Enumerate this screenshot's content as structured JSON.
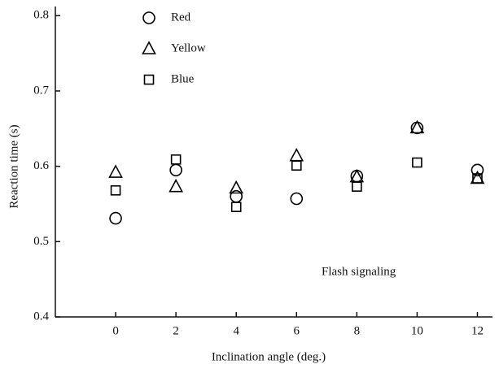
{
  "chart_data": {
    "type": "scatter",
    "xlabel": "Inclination angle (deg.)",
    "ylabel": "Reaction time (s)",
    "annotation": "Flash signaling",
    "x": [
      0,
      2,
      4,
      6,
      8,
      10,
      12
    ],
    "series": [
      {
        "name": "Red",
        "marker": "circle",
        "color": "#000000",
        "values": [
          0.531,
          0.595,
          0.56,
          0.557,
          0.587,
          0.651,
          0.595
        ]
      },
      {
        "name": "Yellow",
        "marker": "triangle",
        "color": "#000000",
        "values": [
          0.592,
          0.573,
          0.571,
          0.614,
          0.586,
          0.651,
          0.584
        ]
      },
      {
        "name": "Blue",
        "marker": "square",
        "color": "#000000",
        "values": [
          0.568,
          0.609,
          0.546,
          0.601,
          0.573,
          0.605,
          0.584
        ]
      }
    ],
    "xlim": [
      -2,
      12.5
    ],
    "ylim": [
      0.4,
      0.81
    ],
    "xticks": [
      0,
      2,
      4,
      6,
      8,
      10,
      12
    ],
    "yticks": [
      0.4,
      0.5,
      0.6,
      0.7,
      0.8
    ]
  }
}
